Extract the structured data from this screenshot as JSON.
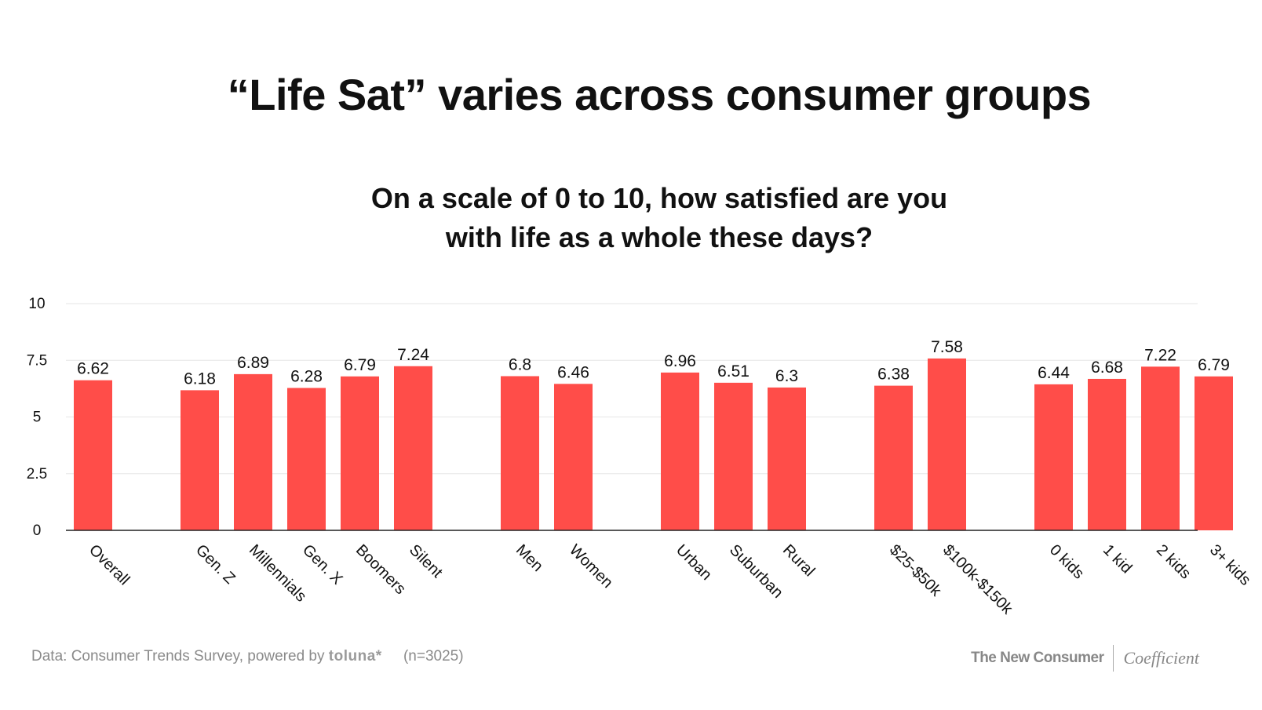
{
  "header": {
    "title": "“Life Sat” varies across consumer groups",
    "subtitle_line1": "On a scale of 0 to 10, how satisfied are you",
    "subtitle_line2": "with life as a whole these days?"
  },
  "footer": {
    "source_prefix": "Data: Consumer Trends Survey, powered by",
    "source_brand": "toluna*",
    "sample": "(n=3025)",
    "logo_left": "The New Consumer",
    "logo_right": "Coefficient"
  },
  "colors": {
    "bar": "#ff4d49",
    "grid": "#e6e6e6",
    "axis": "#222222"
  },
  "chart_data": {
    "type": "bar",
    "categories": [
      "Overall",
      "Gen. Z",
      "Millennials",
      "Gen. X",
      "Boomers",
      "Silent",
      "Men",
      "Women",
      "Urban",
      "Suburban",
      "Rural",
      "$25-$50k",
      "$100k-$150k",
      "0 kids",
      "1 kid",
      "2 kids",
      "3+ kids"
    ],
    "values": [
      6.62,
      6.18,
      6.89,
      6.28,
      6.79,
      7.24,
      6.8,
      6.46,
      6.96,
      6.51,
      6.3,
      6.38,
      7.58,
      6.44,
      6.68,
      7.22,
      6.79
    ],
    "value_labels": [
      "6.62",
      "6.18",
      "6.89",
      "6.28",
      "6.79",
      "7.24",
      "6.8",
      "6.46",
      "6.96",
      "6.51",
      "6.3",
      "6.38",
      "7.58",
      "6.44",
      "6.68",
      "7.22",
      "6.79"
    ],
    "groups": [
      [
        "Overall"
      ],
      [
        "Gen. Z",
        "Millennials",
        "Gen. X",
        "Boomers",
        "Silent"
      ],
      [
        "Men",
        "Women"
      ],
      [
        "Urban",
        "Suburban",
        "Rural"
      ],
      [
        "$25-$50k",
        "$100k-$150k"
      ],
      [
        "0 kids",
        "1 kid",
        "2 kids",
        "3+ kids"
      ]
    ],
    "ylim": [
      0,
      10
    ],
    "yticks": [
      "0",
      "2.5",
      "5",
      "7.5",
      "10"
    ],
    "grid": true,
    "legend": "none",
    "xlabel": "",
    "ylabel": ""
  }
}
